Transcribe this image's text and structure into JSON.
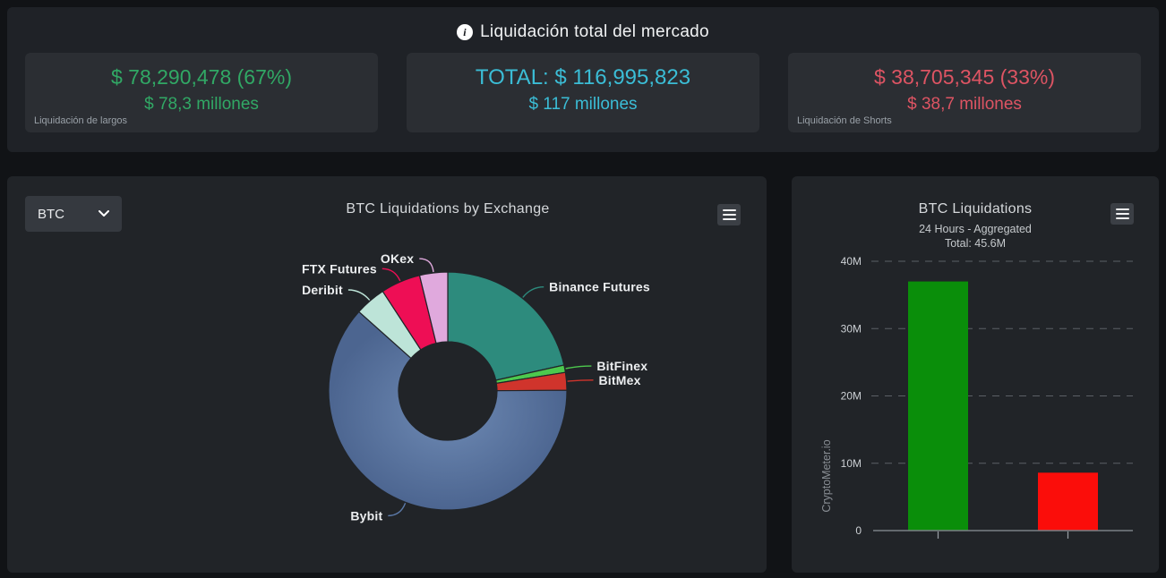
{
  "colors": {
    "page_bg": "#111316",
    "panel_bg": "#212428",
    "card_bg": "#2b2e33",
    "longs_green": "#31a865",
    "total_cyan": "#3bbdd6",
    "shorts_red": "#dd5463",
    "bar_green": "#0a8e0a",
    "bar_red": "#fb0d0a"
  },
  "market_summary": {
    "title": "Liquidación total del mercado",
    "info_icon": "info-icon",
    "longs": {
      "line1": "$ 78,290,478 (67%)",
      "line2": "$ 78,3 millones",
      "label": "Liquidación de largos"
    },
    "total": {
      "line1": "TOTAL: $ 116,995,823",
      "line2": "$ 117 millones"
    },
    "shorts": {
      "line1": "$ 38,705,345 (33%)",
      "line2": "$ 38,7 millones",
      "label": "Liquidación de Shorts"
    }
  },
  "exchange_panel": {
    "selector_value": "BTC",
    "title": "BTC Liquidations by Exchange"
  },
  "liquidations_panel": {
    "title": "BTC Liquidations",
    "subtitle": "24 Hours - Aggregated",
    "total_line": "Total: 45.6M",
    "watermark": "CryptoMeter.io"
  },
  "chart_data": [
    {
      "type": "pie",
      "subtype": "donut",
      "title": "BTC Liquidations by Exchange",
      "values_are_estimated_percent": true,
      "start_angle_deg": 0,
      "direction": "clockwise",
      "series": [
        {
          "name": "Binance Futures",
          "value": 21.5,
          "color": "#2d8b7d"
        },
        {
          "name": "BitFinex",
          "value": 1.0,
          "color": "#4dc94e"
        },
        {
          "name": "BitMex",
          "value": 2.4,
          "color": "#d0342c"
        },
        {
          "name": "Bybit",
          "value": 61.7,
          "color": "#5b79a8"
        },
        {
          "name": "Deribit",
          "value": 4.2,
          "color": "#bde4d8"
        },
        {
          "name": "FTX Futures",
          "value": 5.4,
          "color": "#ee0e55"
        },
        {
          "name": "OKex",
          "value": 3.8,
          "color": "#e0a9dd"
        }
      ],
      "legend_position": "labels-with-leader-lines"
    },
    {
      "type": "bar",
      "title": "BTC Liquidations",
      "subtitle": "24 Hours - Aggregated",
      "total_label": "Total: 45.6M",
      "categories": [
        "",
        ""
      ],
      "values": [
        37.0,
        8.6
      ],
      "bar_colors": [
        "#0a8e0a",
        "#fb0d0a"
      ],
      "unit": "M",
      "ylim": [
        0,
        40
      ],
      "ytick_labels": [
        "0",
        "10M",
        "20M",
        "30M",
        "40M"
      ],
      "ylabel": "CryptoMeter.io",
      "grid": "dashed-horizontal",
      "values_are_estimated": true
    }
  ]
}
